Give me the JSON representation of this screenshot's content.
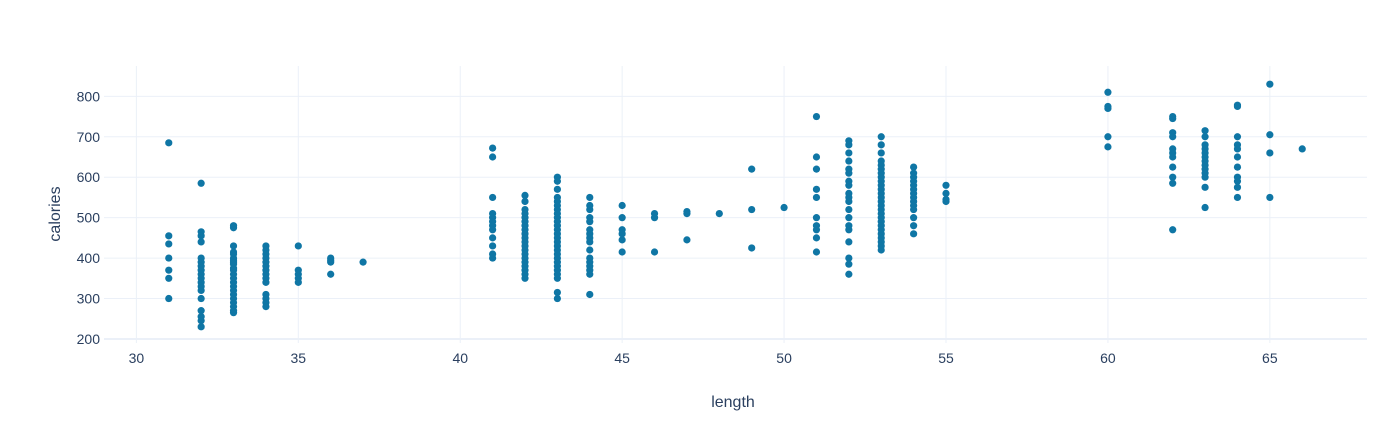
{
  "chart_data": {
    "type": "scatter",
    "title": "",
    "xlabel": "length",
    "ylabel": "calories",
    "xlim": [
      29,
      68
    ],
    "ylim": [
      190,
      875
    ],
    "x_ticks": [
      30,
      35,
      40,
      45,
      50,
      55,
      60,
      65
    ],
    "y_ticks": [
      200,
      300,
      400,
      500,
      600,
      700,
      800
    ],
    "grid": true,
    "legend": "none",
    "marker_color": "#0f76a5",
    "series": [
      {
        "points": [
          [
            31,
            685
          ],
          [
            31,
            455
          ],
          [
            31,
            435
          ],
          [
            31,
            400
          ],
          [
            31,
            370
          ],
          [
            31,
            350
          ],
          [
            31,
            300
          ],
          [
            32,
            585
          ],
          [
            32,
            465
          ],
          [
            32,
            455
          ],
          [
            32,
            440
          ],
          [
            32,
            400
          ],
          [
            32,
            390
          ],
          [
            32,
            380
          ],
          [
            32,
            370
          ],
          [
            32,
            360
          ],
          [
            32,
            350
          ],
          [
            32,
            340
          ],
          [
            32,
            330
          ],
          [
            32,
            320
          ],
          [
            32,
            300
          ],
          [
            32,
            270
          ],
          [
            32,
            255
          ],
          [
            32,
            245
          ],
          [
            32,
            230
          ],
          [
            33,
            480
          ],
          [
            33,
            475
          ],
          [
            33,
            430
          ],
          [
            33,
            415
          ],
          [
            33,
            410
          ],
          [
            33,
            400
          ],
          [
            33,
            395
          ],
          [
            33,
            390
          ],
          [
            33,
            385
          ],
          [
            33,
            375
          ],
          [
            33,
            370
          ],
          [
            33,
            360
          ],
          [
            33,
            350
          ],
          [
            33,
            340
          ],
          [
            33,
            330
          ],
          [
            33,
            320
          ],
          [
            33,
            310
          ],
          [
            33,
            300
          ],
          [
            33,
            290
          ],
          [
            33,
            280
          ],
          [
            33,
            270
          ],
          [
            33,
            265
          ],
          [
            34,
            430
          ],
          [
            34,
            420
          ],
          [
            34,
            410
          ],
          [
            34,
            400
          ],
          [
            34,
            390
          ],
          [
            34,
            380
          ],
          [
            34,
            370
          ],
          [
            34,
            360
          ],
          [
            34,
            350
          ],
          [
            34,
            340
          ],
          [
            34,
            310
          ],
          [
            34,
            300
          ],
          [
            34,
            290
          ],
          [
            34,
            280
          ],
          [
            35,
            430
          ],
          [
            35,
            370
          ],
          [
            35,
            360
          ],
          [
            35,
            350
          ],
          [
            35,
            340
          ],
          [
            36,
            400
          ],
          [
            36,
            395
          ],
          [
            36,
            390
          ],
          [
            36,
            360
          ],
          [
            37,
            390
          ],
          [
            41,
            672
          ],
          [
            41,
            650
          ],
          [
            41,
            550
          ],
          [
            41,
            510
          ],
          [
            41,
            500
          ],
          [
            41,
            490
          ],
          [
            41,
            480
          ],
          [
            41,
            470
          ],
          [
            41,
            450
          ],
          [
            41,
            430
          ],
          [
            41,
            410
          ],
          [
            41,
            400
          ],
          [
            42,
            555
          ],
          [
            42,
            540
          ],
          [
            42,
            520
          ],
          [
            42,
            510
          ],
          [
            42,
            500
          ],
          [
            42,
            490
          ],
          [
            42,
            480
          ],
          [
            42,
            470
          ],
          [
            42,
            460
          ],
          [
            42,
            450
          ],
          [
            42,
            440
          ],
          [
            42,
            430
          ],
          [
            42,
            420
          ],
          [
            42,
            410
          ],
          [
            42,
            400
          ],
          [
            42,
            390
          ],
          [
            42,
            380
          ],
          [
            42,
            370
          ],
          [
            42,
            360
          ],
          [
            42,
            350
          ],
          [
            43,
            600
          ],
          [
            43,
            590
          ],
          [
            43,
            570
          ],
          [
            43,
            550
          ],
          [
            43,
            540
          ],
          [
            43,
            530
          ],
          [
            43,
            520
          ],
          [
            43,
            510
          ],
          [
            43,
            500
          ],
          [
            43,
            490
          ],
          [
            43,
            480
          ],
          [
            43,
            470
          ],
          [
            43,
            460
          ],
          [
            43,
            450
          ],
          [
            43,
            440
          ],
          [
            43,
            430
          ],
          [
            43,
            420
          ],
          [
            43,
            410
          ],
          [
            43,
            400
          ],
          [
            43,
            390
          ],
          [
            43,
            380
          ],
          [
            43,
            370
          ],
          [
            43,
            360
          ],
          [
            43,
            350
          ],
          [
            43,
            315
          ],
          [
            43,
            300
          ],
          [
            44,
            550
          ],
          [
            44,
            530
          ],
          [
            44,
            520
          ],
          [
            44,
            500
          ],
          [
            44,
            490
          ],
          [
            44,
            470
          ],
          [
            44,
            460
          ],
          [
            44,
            450
          ],
          [
            44,
            440
          ],
          [
            44,
            420
          ],
          [
            44,
            400
          ],
          [
            44,
            390
          ],
          [
            44,
            380
          ],
          [
            44,
            370
          ],
          [
            44,
            360
          ],
          [
            44,
            310
          ],
          [
            45,
            530
          ],
          [
            45,
            500
          ],
          [
            45,
            470
          ],
          [
            45,
            460
          ],
          [
            45,
            445
          ],
          [
            45,
            415
          ],
          [
            46,
            510
          ],
          [
            46,
            500
          ],
          [
            46,
            415
          ],
          [
            47,
            515
          ],
          [
            47,
            510
          ],
          [
            47,
            445
          ],
          [
            48,
            510
          ],
          [
            49,
            620
          ],
          [
            49,
            520
          ],
          [
            49,
            425
          ],
          [
            50,
            525
          ],
          [
            51,
            750
          ],
          [
            51,
            650
          ],
          [
            51,
            620
          ],
          [
            51,
            570
          ],
          [
            51,
            550
          ],
          [
            51,
            500
          ],
          [
            51,
            480
          ],
          [
            51,
            470
          ],
          [
            51,
            450
          ],
          [
            51,
            415
          ],
          [
            52,
            690
          ],
          [
            52,
            680
          ],
          [
            52,
            660
          ],
          [
            52,
            640
          ],
          [
            52,
            620
          ],
          [
            52,
            610
          ],
          [
            52,
            590
          ],
          [
            52,
            580
          ],
          [
            52,
            560
          ],
          [
            52,
            550
          ],
          [
            52,
            540
          ],
          [
            52,
            520
          ],
          [
            52,
            500
          ],
          [
            52,
            480
          ],
          [
            52,
            470
          ],
          [
            52,
            440
          ],
          [
            52,
            400
          ],
          [
            52,
            385
          ],
          [
            52,
            360
          ],
          [
            53,
            700
          ],
          [
            53,
            680
          ],
          [
            53,
            660
          ],
          [
            53,
            640
          ],
          [
            53,
            630
          ],
          [
            53,
            620
          ],
          [
            53,
            610
          ],
          [
            53,
            600
          ],
          [
            53,
            590
          ],
          [
            53,
            580
          ],
          [
            53,
            570
          ],
          [
            53,
            560
          ],
          [
            53,
            550
          ],
          [
            53,
            540
          ],
          [
            53,
            530
          ],
          [
            53,
            520
          ],
          [
            53,
            510
          ],
          [
            53,
            500
          ],
          [
            53,
            490
          ],
          [
            53,
            480
          ],
          [
            53,
            470
          ],
          [
            53,
            460
          ],
          [
            53,
            450
          ],
          [
            53,
            440
          ],
          [
            53,
            430
          ],
          [
            53,
            420
          ],
          [
            54,
            625
          ],
          [
            54,
            610
          ],
          [
            54,
            600
          ],
          [
            54,
            590
          ],
          [
            54,
            580
          ],
          [
            54,
            570
          ],
          [
            54,
            560
          ],
          [
            54,
            550
          ],
          [
            54,
            540
          ],
          [
            54,
            530
          ],
          [
            54,
            520
          ],
          [
            54,
            500
          ],
          [
            54,
            480
          ],
          [
            54,
            460
          ],
          [
            55,
            580
          ],
          [
            55,
            560
          ],
          [
            55,
            545
          ],
          [
            55,
            540
          ],
          [
            60,
            810
          ],
          [
            60,
            775
          ],
          [
            60,
            770
          ],
          [
            60,
            700
          ],
          [
            60,
            675
          ],
          [
            62,
            750
          ],
          [
            62,
            745
          ],
          [
            62,
            710
          ],
          [
            62,
            700
          ],
          [
            62,
            670
          ],
          [
            62,
            660
          ],
          [
            62,
            650
          ],
          [
            62,
            625
          ],
          [
            62,
            600
          ],
          [
            62,
            585
          ],
          [
            62,
            470
          ],
          [
            63,
            715
          ],
          [
            63,
            700
          ],
          [
            63,
            680
          ],
          [
            63,
            670
          ],
          [
            63,
            660
          ],
          [
            63,
            650
          ],
          [
            63,
            640
          ],
          [
            63,
            630
          ],
          [
            63,
            620
          ],
          [
            63,
            610
          ],
          [
            63,
            600
          ],
          [
            63,
            575
          ],
          [
            63,
            525
          ],
          [
            64,
            778
          ],
          [
            64,
            775
          ],
          [
            64,
            700
          ],
          [
            64,
            680
          ],
          [
            64,
            670
          ],
          [
            64,
            650
          ],
          [
            64,
            625
          ],
          [
            64,
            600
          ],
          [
            64,
            590
          ],
          [
            64,
            575
          ],
          [
            64,
            550
          ],
          [
            65,
            830
          ],
          [
            65,
            705
          ],
          [
            65,
            660
          ],
          [
            65,
            550
          ],
          [
            66,
            670
          ]
        ]
      }
    ]
  }
}
